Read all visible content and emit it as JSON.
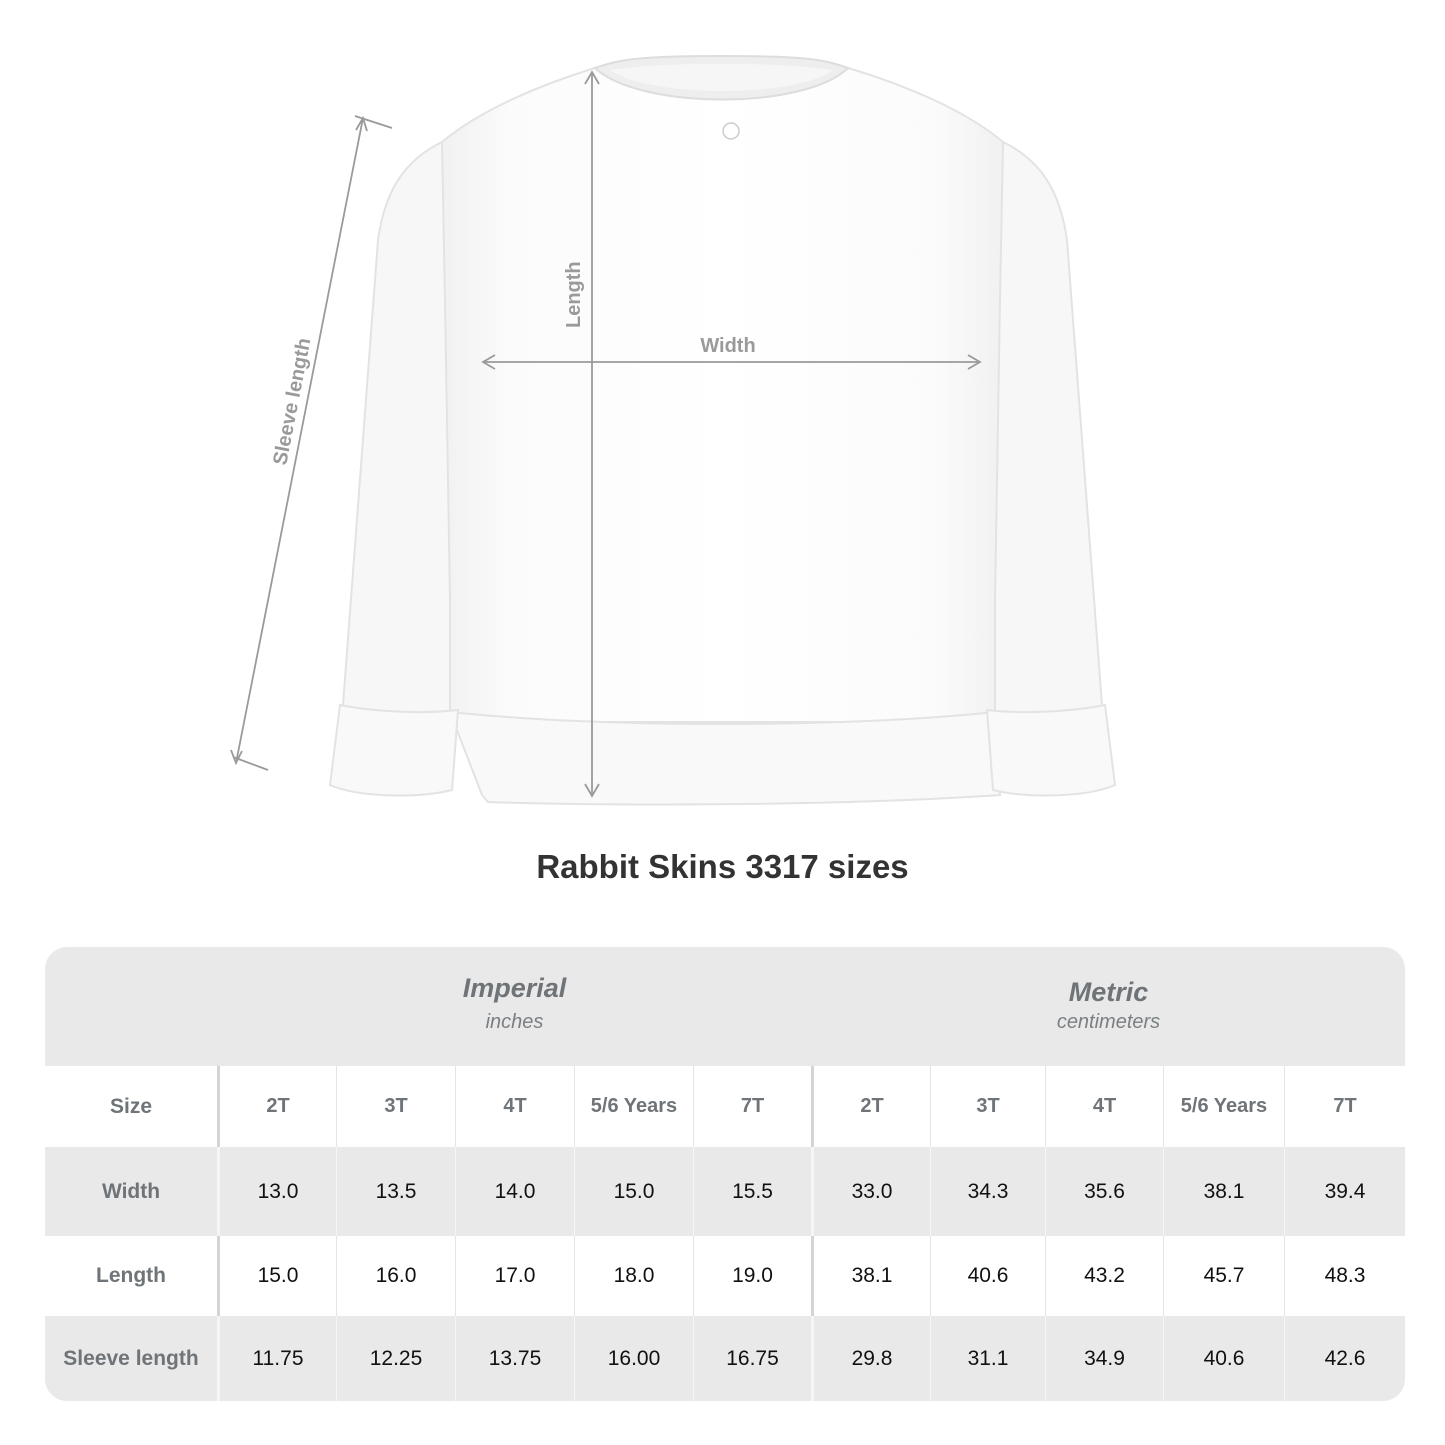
{
  "illustration": {
    "labels": {
      "sleeve_length": "Sleeve length",
      "length": "Length",
      "width": "Width"
    },
    "garment": "white crewneck sweatshirt"
  },
  "title": "Rabbit Skins 3317 sizes",
  "table": {
    "systems": [
      {
        "name": "Imperial",
        "unit": "inches"
      },
      {
        "name": "Metric",
        "unit": "centimeters"
      }
    ],
    "header": {
      "label": "Size",
      "sizes": [
        "2T",
        "3T",
        "4T",
        "5/6 Years",
        "7T",
        "2T",
        "3T",
        "4T",
        "5/6 Years",
        "7T"
      ]
    },
    "rows": [
      {
        "label": "Width",
        "values": [
          "13.0",
          "13.5",
          "14.0",
          "15.0",
          "15.5",
          "33.0",
          "34.3",
          "35.6",
          "38.1",
          "39.4"
        ]
      },
      {
        "label": "Length",
        "values": [
          "15.0",
          "16.0",
          "17.0",
          "18.0",
          "19.0",
          "38.1",
          "40.6",
          "43.2",
          "45.7",
          "48.3"
        ]
      },
      {
        "label": "Sleeve length",
        "values": [
          "11.75",
          "12.25",
          "13.75",
          "16.00",
          "16.75",
          "29.8",
          "31.1",
          "34.9",
          "40.6",
          "42.6"
        ]
      }
    ]
  }
}
